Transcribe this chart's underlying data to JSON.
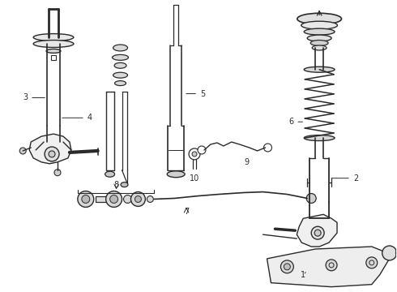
{
  "bg_color": "#ffffff",
  "line_color": "#2a2a2a",
  "fig_width": 4.9,
  "fig_height": 3.6,
  "dpi": 100,
  "xlim": [
    0,
    490
  ],
  "ylim": [
    0,
    360
  ]
}
